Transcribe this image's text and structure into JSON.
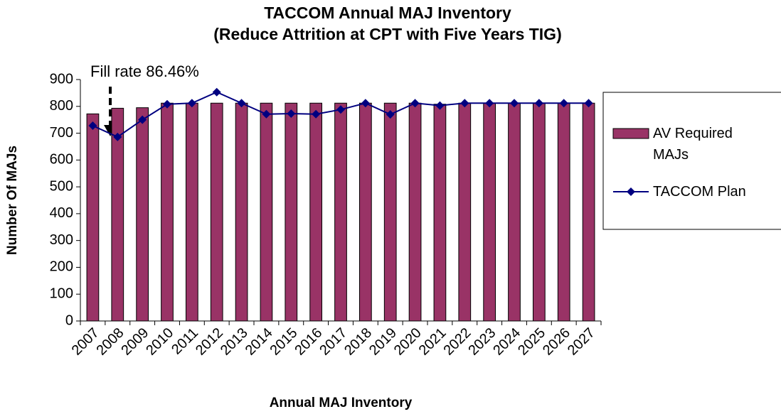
{
  "chart_data": {
    "type": "bar_line",
    "title": "TACCOM Annual MAJ Inventory",
    "subtitle": "(Reduce Attrition at CPT with Five Years TIG)",
    "annotation": "Fill rate 86.46%",
    "x_label": "Annual MAJ Inventory",
    "y_label": "Number Of MAJs",
    "categories": [
      "2007",
      "2008",
      "2009",
      "2010",
      "2011",
      "2012",
      "2013",
      "2014",
      "2015",
      "2016",
      "2017",
      "2018",
      "2019",
      "2020",
      "2021",
      "2022",
      "2023",
      "2024",
      "2025",
      "2026",
      "2027"
    ],
    "series": [
      {
        "name": "AV Required MAJs",
        "type": "bar",
        "color": "#993366",
        "values": [
          772,
          793,
          795,
          812,
          812,
          812,
          812,
          812,
          812,
          812,
          812,
          812,
          812,
          812,
          808,
          812,
          812,
          812,
          812,
          812,
          812
        ]
      },
      {
        "name": "TACCOM Plan",
        "type": "line",
        "color": "#000080",
        "values": [
          728,
          686,
          750,
          808,
          812,
          853,
          812,
          771,
          773,
          771,
          788,
          812,
          770,
          812,
          803,
          812,
          812,
          812,
          812,
          812,
          812
        ]
      }
    ],
    "ylim": [
      0,
      900
    ],
    "yticks": [
      0,
      100,
      200,
      300,
      400,
      500,
      600,
      700,
      800,
      900
    ],
    "legend": "right"
  }
}
